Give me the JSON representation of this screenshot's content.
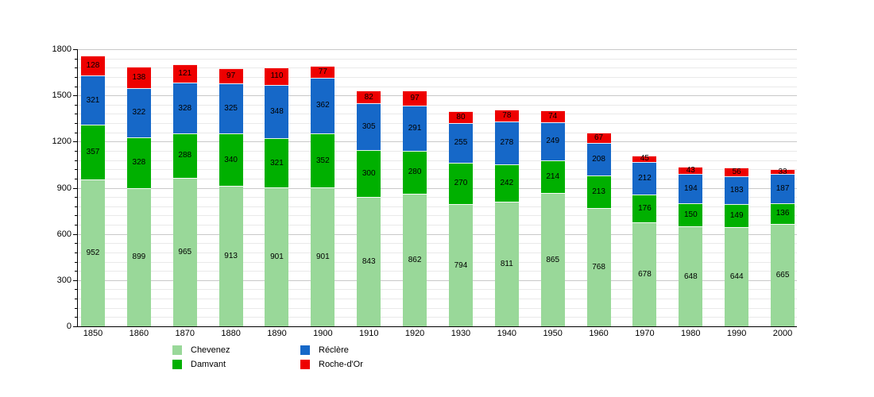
{
  "chart_data": {
    "type": "bar",
    "stacked": true,
    "title": "",
    "xlabel": "",
    "ylabel": "",
    "categories": [
      "1850",
      "1860",
      "1870",
      "1880",
      "1890",
      "1900",
      "1910",
      "1920",
      "1930",
      "1940",
      "1950",
      "1960",
      "1970",
      "1980",
      "1990",
      "2000"
    ],
    "series": [
      {
        "name": "Chevenez",
        "color": "#99d899",
        "values": [
          952,
          899,
          965,
          913,
          901,
          901,
          843,
          862,
          794,
          811,
          865,
          768,
          678,
          648,
          644,
          665
        ]
      },
      {
        "name": "Damvant",
        "color": "#00b000",
        "values": [
          357,
          328,
          288,
          340,
          321,
          352,
          300,
          280,
          270,
          242,
          214,
          213,
          176,
          150,
          149,
          136
        ]
      },
      {
        "name": "Réclère",
        "color": "#1668c8",
        "values": [
          321,
          322,
          328,
          325,
          348,
          362,
          305,
          291,
          255,
          278,
          249,
          208,
          212,
          194,
          183,
          187
        ]
      },
      {
        "name": "Roche-d'Or",
        "color": "#ee0000",
        "values": [
          128,
          138,
          121,
          97,
          110,
          77,
          82,
          97,
          80,
          78,
          74,
          67,
          45,
          43,
          56,
          33
        ]
      }
    ],
    "ylim": [
      0,
      1800
    ],
    "y_major_step": 300,
    "y_minor_step": 60,
    "y_tick_labels": [
      "0",
      "300",
      "600",
      "900",
      "1200",
      "1500",
      "1800"
    ],
    "grid": true,
    "legend_position": "bottom",
    "legend_columns": [
      [
        "Chevenez",
        "Damvant"
      ],
      [
        "Réclère",
        "Roche-d'Or"
      ]
    ],
    "bar_value_labels_visible": true
  },
  "colors": {
    "background": "#ffffff",
    "axis": "#000000",
    "grid_major": "#c9c9c9",
    "grid_minor": "#e9e9e9",
    "label_text": "#000000"
  }
}
